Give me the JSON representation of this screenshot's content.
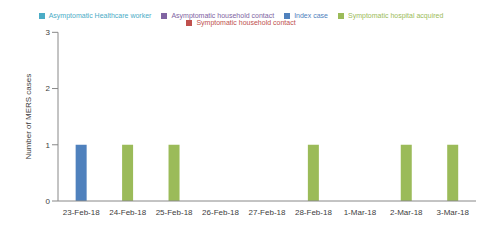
{
  "chart_data": {
    "type": "bar",
    "y_label": "Number of MERS cases",
    "categories": [
      "23-Feb-18",
      "24-Feb-18",
      "25-Feb-18",
      "26-Feb-18",
      "27-Feb-18",
      "28-Feb-18",
      "1-Mar-18",
      "2-Mar-18",
      "3-Mar-18"
    ],
    "series": [
      {
        "name": "Asymptomatic Healthcare worker",
        "color": "#4bacc6",
        "values": [
          0,
          0,
          0,
          0,
          0,
          0,
          0,
          0,
          0
        ]
      },
      {
        "name": "Asymptomatic household contact",
        "color": "#8064a2",
        "values": [
          0,
          0,
          0,
          0,
          0,
          0,
          0,
          0,
          0
        ]
      },
      {
        "name": "Symptomatic hospital acquired",
        "color": "#9bbb59",
        "values": [
          0,
          1,
          1,
          0,
          0,
          1,
          0,
          1,
          1
        ]
      },
      {
        "name": "Symptomatic household contact",
        "color": "#c0504d",
        "values": [
          0,
          0,
          0,
          0,
          0,
          0,
          0,
          0,
          0
        ]
      },
      {
        "name": "Index case",
        "color": "#4f81bd",
        "values": [
          1,
          0,
          0,
          0,
          0,
          0,
          0,
          0,
          0
        ]
      }
    ],
    "ylim": [
      0,
      3
    ],
    "yticks": [
      0,
      1,
      2,
      3
    ],
    "stacked": true,
    "legend": "top",
    "grid": false
  }
}
